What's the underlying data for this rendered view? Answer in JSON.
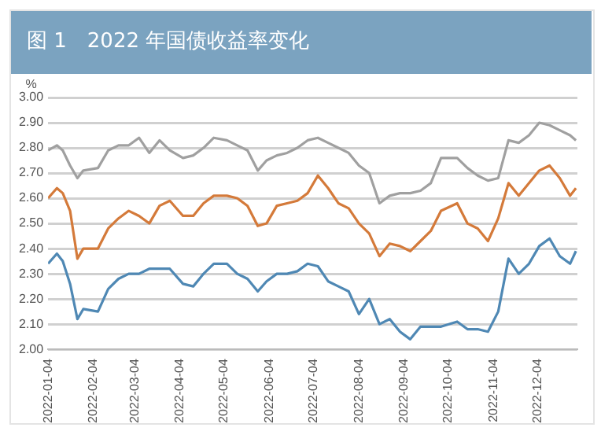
{
  "chart_data": {
    "type": "line",
    "title": "图 1　2022 年国债收益率变化",
    "ylabel": "%",
    "x": [
      "2022-01-04",
      "2022-01-10",
      "2022-01-14",
      "2022-01-19",
      "2022-01-24",
      "2022-01-28",
      "2022-02-07",
      "2022-02-14",
      "2022-02-21",
      "2022-02-28",
      "2022-03-07",
      "2022-03-14",
      "2022-03-21",
      "2022-03-28",
      "2022-04-06",
      "2022-04-13",
      "2022-04-20",
      "2022-04-27",
      "2022-05-06",
      "2022-05-13",
      "2022-05-20",
      "2022-05-27",
      "2022-06-02",
      "2022-06-09",
      "2022-06-16",
      "2022-06-23",
      "2022-06-30",
      "2022-07-07",
      "2022-07-14",
      "2022-07-21",
      "2022-07-28",
      "2022-08-04",
      "2022-08-11",
      "2022-08-18",
      "2022-08-25",
      "2022-09-01",
      "2022-09-08",
      "2022-09-15",
      "2022-09-22",
      "2022-09-29",
      "2022-10-10",
      "2022-10-17",
      "2022-10-24",
      "2022-10-31",
      "2022-11-07",
      "2022-11-14",
      "2022-11-21",
      "2022-11-28",
      "2022-12-05",
      "2022-12-12",
      "2022-12-19",
      "2022-12-26",
      "2022-12-30"
    ],
    "series": [
      {
        "color": "#a0a0a0",
        "values": [
          2.79,
          2.81,
          2.79,
          2.73,
          2.68,
          2.71,
          2.72,
          2.79,
          2.81,
          2.81,
          2.84,
          2.78,
          2.83,
          2.79,
          2.76,
          2.77,
          2.8,
          2.84,
          2.83,
          2.81,
          2.79,
          2.71,
          2.75,
          2.77,
          2.78,
          2.8,
          2.83,
          2.84,
          2.82,
          2.8,
          2.78,
          2.73,
          2.7,
          2.58,
          2.61,
          2.62,
          2.62,
          2.63,
          2.66,
          2.76,
          2.76,
          2.72,
          2.69,
          2.67,
          2.68,
          2.83,
          2.82,
          2.85,
          2.9,
          2.89,
          2.87,
          2.85,
          2.83
        ]
      },
      {
        "color": "#d47a3a",
        "values": [
          2.6,
          2.64,
          2.62,
          2.55,
          2.36,
          2.4,
          2.4,
          2.48,
          2.52,
          2.55,
          2.53,
          2.5,
          2.57,
          2.59,
          2.53,
          2.53,
          2.58,
          2.61,
          2.61,
          2.6,
          2.57,
          2.49,
          2.5,
          2.57,
          2.58,
          2.59,
          2.62,
          2.69,
          2.64,
          2.58,
          2.56,
          2.5,
          2.46,
          2.37,
          2.42,
          2.41,
          2.39,
          2.43,
          2.47,
          2.55,
          2.58,
          2.5,
          2.48,
          2.43,
          2.52,
          2.66,
          2.61,
          2.66,
          2.71,
          2.73,
          2.68,
          2.61,
          2.64
        ]
      },
      {
        "color": "#4f88b4",
        "values": [
          2.34,
          2.38,
          2.35,
          2.26,
          2.12,
          2.16,
          2.15,
          2.24,
          2.28,
          2.3,
          2.3,
          2.32,
          2.32,
          2.32,
          2.26,
          2.25,
          2.3,
          2.34,
          2.34,
          2.3,
          2.28,
          2.23,
          2.27,
          2.3,
          2.3,
          2.31,
          2.34,
          2.33,
          2.27,
          2.25,
          2.23,
          2.14,
          2.2,
          2.1,
          2.12,
          2.07,
          2.04,
          2.09,
          2.09,
          2.09,
          2.11,
          2.08,
          2.08,
          2.07,
          2.15,
          2.36,
          2.3,
          2.34,
          2.41,
          2.44,
          2.37,
          2.34,
          2.39
        ]
      }
    ],
    "xlim": [
      "2022-01-04",
      "2022-12-31"
    ],
    "xticks": [
      "2022-01-04",
      "2022-02-04",
      "2022-03-04",
      "2022-04-04",
      "2022-05-04",
      "2022-06-04",
      "2022-07-04",
      "2022-08-04",
      "2022-09-04",
      "2022-10-04",
      "2022-11-04",
      "2022-12-04"
    ],
    "ylim": [
      2.0,
      3.0
    ],
    "yticks": [
      {
        "value": 2.0,
        "label": "2.00"
      },
      {
        "value": 2.1,
        "label": "2.10"
      },
      {
        "value": 2.2,
        "label": "2.20"
      },
      {
        "value": 2.3,
        "label": "2.30"
      },
      {
        "value": 2.4,
        "label": "2.40"
      },
      {
        "value": 2.5,
        "label": "2.50"
      },
      {
        "value": 2.6,
        "label": "2.60"
      },
      {
        "value": 2.7,
        "label": "2.70"
      },
      {
        "value": 2.8,
        "label": "2.80"
      },
      {
        "value": 2.9,
        "label": "2.90"
      },
      {
        "value": 3.0,
        "label": "3.00"
      }
    ],
    "grid": "y",
    "legend": false,
    "marker": "none",
    "line_style": "solid"
  }
}
